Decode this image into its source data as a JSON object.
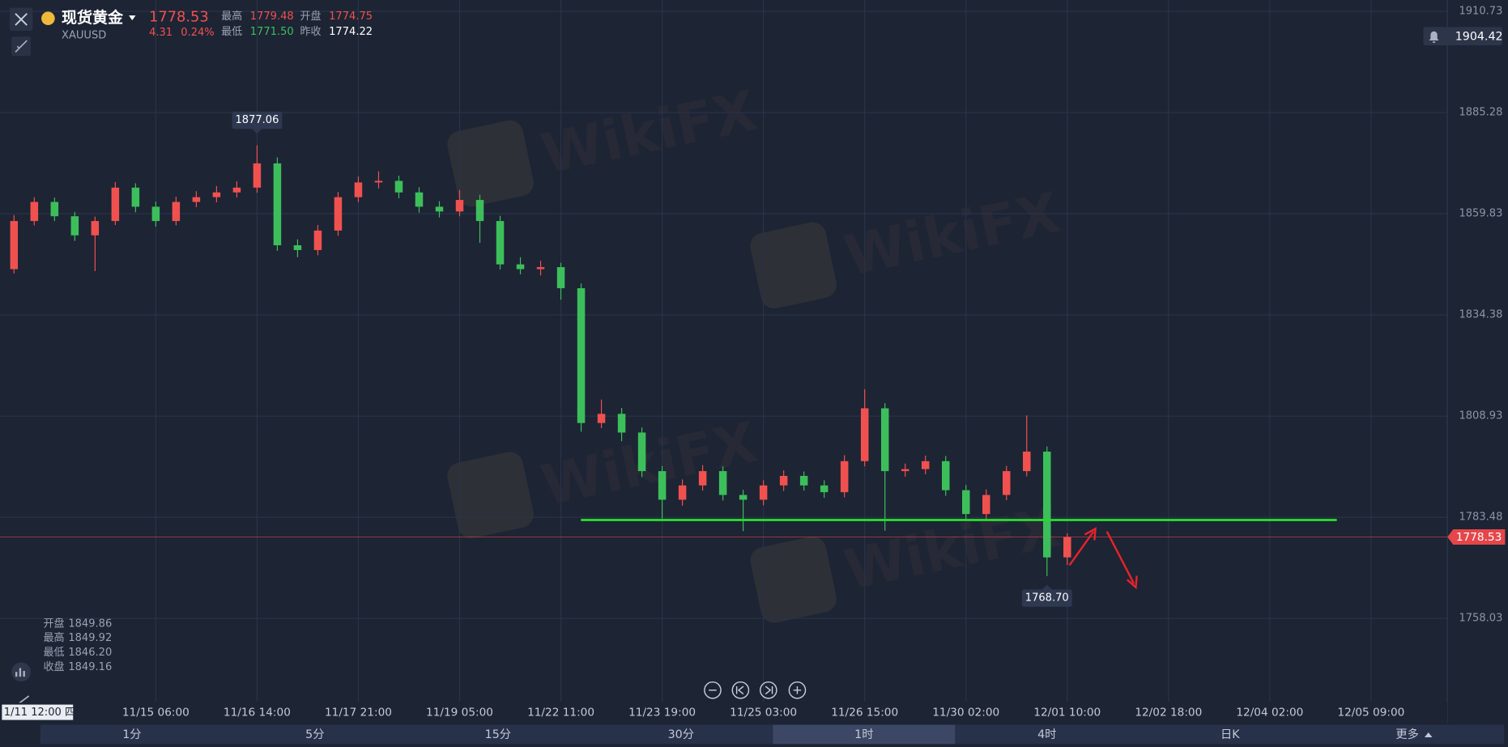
{
  "header": {
    "name": "现货黄金",
    "symbol": "XAUUSD",
    "price": "1778.53",
    "change": "4.31",
    "change_pct": "0.24%",
    "stats": [
      {
        "label": "最高",
        "value": "1779.48"
      },
      {
        "label": "开盘",
        "value": "1774.75"
      },
      {
        "label": "最低",
        "value": "1771.50"
      },
      {
        "label": "昨收",
        "value": "1774.22"
      }
    ]
  },
  "alert_price": "1904.42",
  "watermark": "WikiFX",
  "crosshair_label": "1/11 12:00 四",
  "ohlc_readout": [
    {
      "label": "开盘",
      "value": "1849.86"
    },
    {
      "label": "最高",
      "value": "1849.92"
    },
    {
      "label": "最低",
      "value": "1846.20"
    },
    {
      "label": "收盘",
      "value": "1849.16"
    }
  ],
  "timeframes": [
    "1分",
    "5分",
    "15分",
    "30分",
    "1时",
    "4时",
    "日K",
    "更多"
  ],
  "active_timeframe": 4,
  "chart_data": {
    "type": "candlestick",
    "up_color": "#f0514f",
    "down_color": "#3cbf5b",
    "grid": true,
    "categories": [
      null,
      null,
      null,
      null,
      null,
      null,
      null,
      "11/15 06:00",
      null,
      null,
      null,
      null,
      "11/16 14:00",
      null,
      null,
      null,
      null,
      "11/17 21:00",
      null,
      null,
      null,
      null,
      "11/19 05:00",
      null,
      null,
      null,
      null,
      "11/22 11:00",
      null,
      null,
      null,
      null,
      "11/23 19:00",
      null,
      null,
      null,
      null,
      "11/25 03:00",
      null,
      null,
      null,
      null,
      "11/26 15:00",
      null,
      null,
      null,
      null,
      "11/30 02:00",
      null,
      null,
      null,
      null,
      "12/01 10:00",
      null,
      null,
      null,
      null,
      "12/02 18:00",
      null,
      null,
      null,
      null,
      "12/04 02:00",
      null,
      null,
      null,
      null,
      "12/05 09:00"
    ],
    "open": [
      1845.9,
      1858.0,
      1862.8,
      1859.2,
      1854.4,
      1858.0,
      1866.4,
      1861.6,
      1858.0,
      1862.8,
      1864.0,
      1865.2,
      1866.4,
      1872.5,
      1851.9,
      1850.7,
      1855.6,
      1864.0,
      1867.7,
      1868.1,
      1865.2,
      1861.6,
      1860.4,
      1863.3,
      1858.0,
      1847.1,
      1845.9,
      1846.4,
      1841.1,
      1807.2,
      1809.5,
      1804.8,
      1795.1,
      1787.9,
      1791.5,
      1795.1,
      1789.1,
      1787.9,
      1791.5,
      1793.9,
      1791.5,
      1789.8,
      1797.6,
      1810.9,
      1795.1,
      1795.6,
      1797.6,
      1790.3,
      1784.3,
      1789.1,
      1795.1,
      1800.0,
      1773.4,
      null,
      null,
      null,
      null,
      null,
      null,
      null,
      null,
      null,
      null,
      null,
      null,
      null,
      null,
      null
    ],
    "high": [
      1859.5,
      1864.0,
      1863.9,
      1860.3,
      1859.1,
      1867.8,
      1867.5,
      1862.9,
      1864.1,
      1865.5,
      1866.8,
      1868.0,
      1877.06,
      1874.0,
      1853.4,
      1857.0,
      1865.3,
      1869.2,
      1870.5,
      1869.4,
      1866.5,
      1863.0,
      1865.8,
      1864.6,
      1859.3,
      1848.9,
      1848.0,
      1847.5,
      1842.3,
      1813.1,
      1811.0,
      1806.1,
      1796.4,
      1793.0,
      1796.6,
      1796.3,
      1790.4,
      1792.8,
      1795.3,
      1795.0,
      1792.8,
      1799.1,
      1815.7,
      1812.2,
      1797.0,
      1799.0,
      1798.9,
      1791.6,
      1790.5,
      1796.4,
      1809.1,
      1801.3,
      1779.48,
      null,
      null,
      null,
      null,
      null,
      null,
      null,
      null,
      null,
      null,
      null,
      null,
      null,
      null,
      null
    ],
    "low": [
      1844.8,
      1856.9,
      1858.0,
      1853.0,
      1845.4,
      1857.0,
      1860.2,
      1856.6,
      1856.9,
      1861.5,
      1862.7,
      1863.9,
      1865.1,
      1850.5,
      1848.9,
      1849.4,
      1854.3,
      1862.8,
      1866.2,
      1863.7,
      1860.1,
      1858.9,
      1859.2,
      1852.5,
      1845.8,
      1844.6,
      1844.3,
      1838.2,
      1805.0,
      1805.9,
      1802.6,
      1793.6,
      1783.2,
      1786.4,
      1790.2,
      1787.7,
      1780.0,
      1786.5,
      1790.1,
      1790.2,
      1788.4,
      1788.5,
      1796.3,
      1780.1,
      1793.7,
      1794.3,
      1788.9,
      1782.5,
      1782.9,
      1787.8,
      1793.8,
      1768.7,
      1771.5,
      null,
      null,
      null,
      null,
      null,
      null,
      null,
      null,
      null,
      null,
      null,
      null,
      null,
      null,
      null
    ],
    "close": [
      1858.0,
      1862.8,
      1859.2,
      1854.4,
      1858.0,
      1866.4,
      1861.6,
      1858.0,
      1862.8,
      1864.0,
      1865.2,
      1866.4,
      1872.5,
      1851.9,
      1850.7,
      1855.6,
      1864.0,
      1867.7,
      1868.1,
      1865.2,
      1861.6,
      1860.4,
      1863.3,
      1858.0,
      1847.1,
      1845.9,
      1846.4,
      1841.1,
      1807.2,
      1809.5,
      1804.8,
      1795.1,
      1787.9,
      1791.5,
      1795.1,
      1789.1,
      1787.9,
      1791.5,
      1793.9,
      1791.5,
      1789.8,
      1797.6,
      1810.9,
      1795.1,
      1795.6,
      1797.6,
      1790.3,
      1784.3,
      1789.1,
      1795.1,
      1800.0,
      1773.4,
      1778.53,
      null,
      null,
      null,
      null,
      null,
      null,
      null,
      null,
      null,
      null,
      null,
      null,
      null,
      null,
      null
    ],
    "extreme_labels": {
      "high": "1877.06",
      "low": "1768.70"
    },
    "last_price": 1778.53,
    "last_price_color": "#e5464a",
    "support_line": 1782.8,
    "support_color": "#27d62e",
    "ylim": [
      1737.1,
      1913.56
    ],
    "yticks": [
      1910.73,
      1885.28,
      1859.83,
      1834.38,
      1808.93,
      1783.48,
      1758.03
    ]
  }
}
